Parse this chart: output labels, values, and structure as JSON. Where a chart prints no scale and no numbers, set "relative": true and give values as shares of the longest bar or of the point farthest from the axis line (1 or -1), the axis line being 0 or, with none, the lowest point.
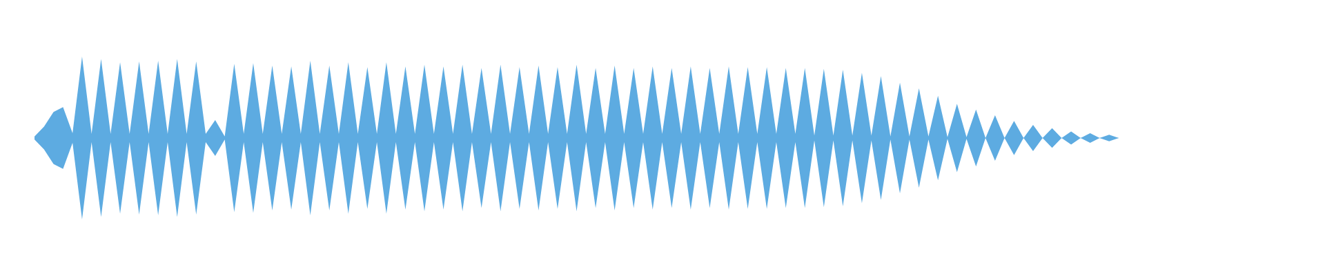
{
  "chart_data": {
    "type": "area",
    "relative": true,
    "categories": [
      null,
      null,
      null,
      null,
      null,
      null,
      null,
      null,
      null,
      null,
      null,
      null,
      null,
      null,
      null,
      null,
      null,
      null,
      null,
      null,
      null,
      null,
      null,
      null,
      null,
      null,
      null,
      null,
      null,
      null,
      null,
      null,
      null,
      null,
      null,
      null,
      null,
      null,
      null,
      null,
      null,
      null,
      null,
      null,
      null,
      null,
      null,
      null,
      null,
      null,
      null,
      null,
      null,
      null,
      null,
      null,
      null,
      null,
      null,
      null,
      null,
      null,
      null,
      null,
      null,
      null,
      null,
      null,
      null,
      null,
      null,
      null,
      null,
      null,
      null,
      null,
      null,
      null,
      null,
      null,
      null,
      null,
      null,
      null,
      null,
      null,
      null,
      null,
      null,
      null,
      null,
      null,
      null,
      null,
      null,
      null,
      null,
      null,
      null,
      null,
      null,
      null,
      null,
      null,
      null,
      null,
      null,
      null,
      null,
      null,
      null,
      null,
      null,
      null,
      null
    ],
    "series": [
      {
        "color": "#5dabe1",
        "values": [
          0.02,
          0.14,
          0.32,
          0.38,
          0.06,
          1.0,
          0.05,
          0.97,
          0.05,
          0.93,
          0.05,
          0.94,
          0.05,
          0.95,
          0.05,
          0.97,
          0.05,
          0.94,
          0.05,
          0.22,
          0.02,
          0.91,
          0.05,
          0.92,
          0.05,
          0.89,
          0.05,
          0.88,
          0.05,
          0.95,
          0.05,
          0.89,
          0.05,
          0.93,
          0.05,
          0.87,
          0.05,
          0.93,
          0.05,
          0.88,
          0.05,
          0.9,
          0.05,
          0.88,
          0.05,
          0.9,
          0.05,
          0.86,
          0.05,
          0.9,
          0.05,
          0.87,
          0.05,
          0.89,
          0.05,
          0.87,
          0.05,
          0.9,
          0.05,
          0.86,
          0.05,
          0.89,
          0.05,
          0.86,
          0.05,
          0.88,
          0.05,
          0.86,
          0.05,
          0.88,
          0.05,
          0.86,
          0.05,
          0.88,
          0.05,
          0.87,
          0.05,
          0.87,
          0.05,
          0.86,
          0.05,
          0.86,
          0.03,
          0.85,
          0.03,
          0.84,
          0.03,
          0.8,
          0.03,
          0.76,
          0.02,
          0.68,
          0.02,
          0.61,
          0.02,
          0.52,
          0.01,
          0.42,
          0.01,
          0.35,
          0,
          0.28,
          0,
          0.21,
          0,
          0.16,
          0,
          0.12,
          0,
          0.08,
          0,
          0.06,
          0,
          0.04,
          0
        ]
      },
      {
        "color": "#5dabe1",
        "values": [
          -0.02,
          -0.14,
          -0.32,
          -0.38,
          -0.06,
          -1.0,
          -0.05,
          -0.97,
          -0.05,
          -0.93,
          -0.05,
          -0.94,
          -0.05,
          -0.95,
          -0.05,
          -0.97,
          -0.05,
          -0.94,
          -0.05,
          -0.22,
          -0.02,
          -0.91,
          -0.05,
          -0.92,
          -0.05,
          -0.89,
          -0.05,
          -0.88,
          -0.05,
          -0.95,
          -0.05,
          -0.89,
          -0.05,
          -0.93,
          -0.05,
          -0.87,
          -0.05,
          -0.93,
          -0.05,
          -0.88,
          -0.05,
          -0.9,
          -0.05,
          -0.88,
          -0.05,
          -0.9,
          -0.05,
          -0.86,
          -0.05,
          -0.9,
          -0.05,
          -0.87,
          -0.05,
          -0.89,
          -0.05,
          -0.87,
          -0.05,
          -0.9,
          -0.05,
          -0.86,
          -0.05,
          -0.89,
          -0.05,
          -0.86,
          -0.05,
          -0.88,
          -0.05,
          -0.86,
          -0.05,
          -0.88,
          -0.05,
          -0.86,
          -0.05,
          -0.88,
          -0.05,
          -0.87,
          -0.05,
          -0.87,
          -0.05,
          -0.86,
          -0.05,
          -0.86,
          -0.03,
          -0.85,
          -0.03,
          -0.84,
          -0.03,
          -0.8,
          -0.03,
          -0.76,
          -0.02,
          -0.68,
          -0.02,
          -0.61,
          -0.02,
          -0.52,
          -0.01,
          -0.42,
          -0.01,
          -0.35,
          0,
          -0.28,
          0,
          -0.21,
          0,
          -0.16,
          0,
          -0.12,
          0,
          -0.08,
          0,
          -0.06,
          0,
          -0.04,
          0
        ]
      }
    ]
  }
}
